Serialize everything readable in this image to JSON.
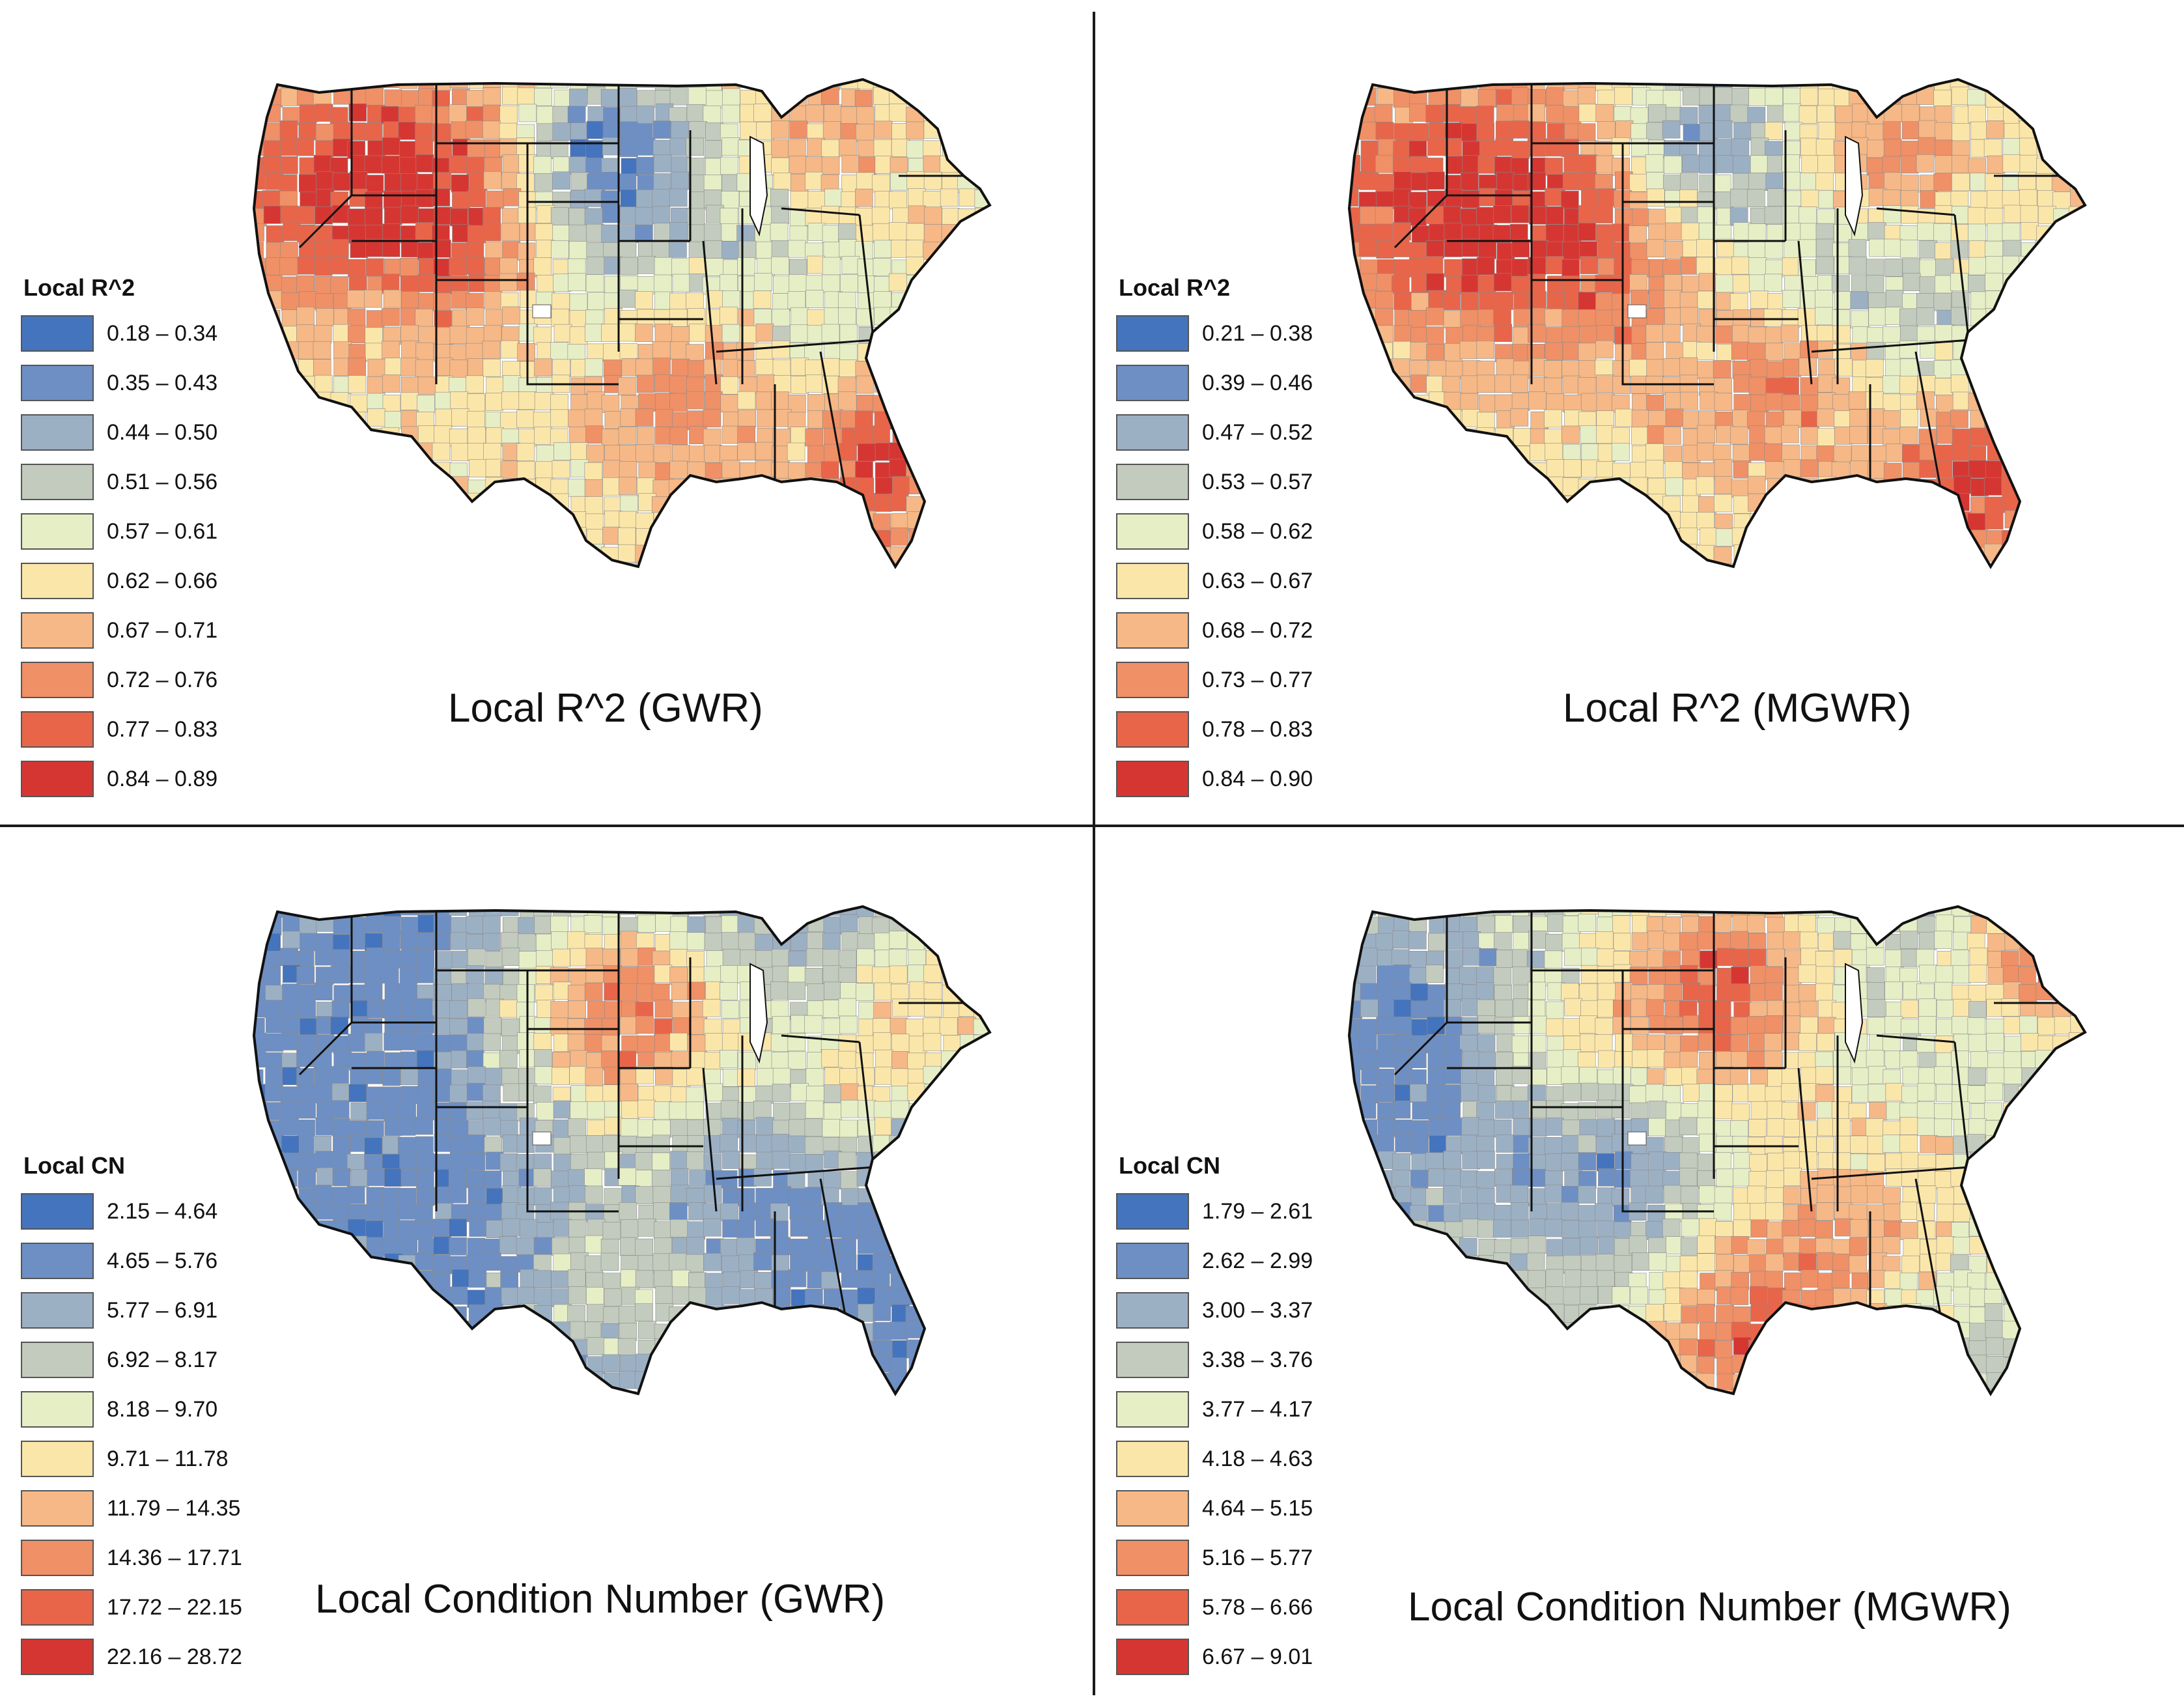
{
  "panels": [
    {
      "id": "tl",
      "caption": "Local R^2 (GWR)",
      "legend": {
        "title": "Local R^2",
        "items": [
          {
            "label": "0.18 – 0.34",
            "color": "#4474bd"
          },
          {
            "label": "0.35 – 0.43",
            "color": "#6d8fc4"
          },
          {
            "label": "0.44 – 0.50",
            "color": "#9cb0c4"
          },
          {
            "label": "0.51 – 0.56",
            "color": "#c2cbbd"
          },
          {
            "label": "0.57 – 0.61",
            "color": "#e6eec6"
          },
          {
            "label": "0.62 – 0.66",
            "color": "#fbe6a9"
          },
          {
            "label": "0.67 – 0.71",
            "color": "#f6b886"
          },
          {
            "label": "0.72 – 0.76",
            "color": "#f09066"
          },
          {
            "label": "0.77 – 0.83",
            "color": "#e8654a"
          },
          {
            "label": "0.84 – 0.89",
            "color": "#d63632"
          }
        ]
      }
    },
    {
      "id": "tr",
      "caption": "Local R^2 (MGWR)",
      "legend": {
        "title": "Local R^2",
        "items": [
          {
            "label": "0.21 – 0.38",
            "color": "#4474bd"
          },
          {
            "label": "0.39 – 0.46",
            "color": "#6d8fc4"
          },
          {
            "label": "0.47 – 0.52",
            "color": "#9cb0c4"
          },
          {
            "label": "0.53 – 0.57",
            "color": "#c2cbbd"
          },
          {
            "label": "0.58 – 0.62",
            "color": "#e6eec6"
          },
          {
            "label": "0.63 – 0.67",
            "color": "#fbe6a9"
          },
          {
            "label": "0.68 – 0.72",
            "color": "#f6b886"
          },
          {
            "label": "0.73 – 0.77",
            "color": "#f09066"
          },
          {
            "label": "0.78 – 0.83",
            "color": "#e8654a"
          },
          {
            "label": "0.84 – 0.90",
            "color": "#d63632"
          }
        ]
      }
    },
    {
      "id": "bl",
      "caption": "Local Condition Number (GWR)",
      "legend": {
        "title": "Local CN",
        "items": [
          {
            "label": "2.15 – 4.64",
            "color": "#4474bd"
          },
          {
            "label": "4.65 – 5.76",
            "color": "#6d8fc4"
          },
          {
            "label": "5.77 – 6.91",
            "color": "#9cb0c4"
          },
          {
            "label": "6.92 – 8.17",
            "color": "#c2cbbd"
          },
          {
            "label": "8.18 – 9.70",
            "color": "#e6eec6"
          },
          {
            "label": "9.71 – 11.78",
            "color": "#fbe6a9"
          },
          {
            "label": "11.79 – 14.35",
            "color": "#f6b886"
          },
          {
            "label": "14.36 – 17.71",
            "color": "#f09066"
          },
          {
            "label": "17.72 – 22.15",
            "color": "#e8654a"
          },
          {
            "label": "22.16 – 28.72",
            "color": "#d63632"
          }
        ]
      }
    },
    {
      "id": "br",
      "caption": "Local Condition Number (MGWR)",
      "legend": {
        "title": "Local CN",
        "items": [
          {
            "label": "1.79 – 2.61",
            "color": "#4474bd"
          },
          {
            "label": "2.62 – 2.99",
            "color": "#6d8fc4"
          },
          {
            "label": "3.00 – 3.37",
            "color": "#9cb0c4"
          },
          {
            "label": "3.38 – 3.76",
            "color": "#c2cbbd"
          },
          {
            "label": "3.77 – 4.17",
            "color": "#e6eec6"
          },
          {
            "label": "4.18 – 4.63",
            "color": "#fbe6a9"
          },
          {
            "label": "4.64 – 5.15",
            "color": "#f6b886"
          },
          {
            "label": "5.16 – 5.77",
            "color": "#f09066"
          },
          {
            "label": "5.78 – 6.66",
            "color": "#e8654a"
          },
          {
            "label": "6.67 – 9.01",
            "color": "#d63632"
          }
        ]
      }
    }
  ]
}
